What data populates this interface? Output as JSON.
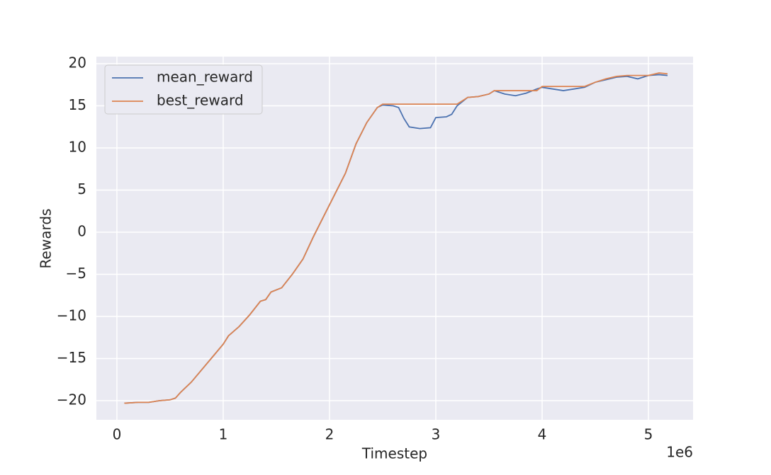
{
  "chart_data": {
    "type": "line",
    "xlabel": "Timestep",
    "ylabel": "Rewards",
    "x_offset_label": "1e6",
    "x": [
      0.07,
      0.2,
      0.3,
      0.4,
      0.5,
      0.55,
      0.6,
      0.7,
      0.8,
      0.9,
      1.0,
      1.05,
      1.15,
      1.25,
      1.35,
      1.4,
      1.45,
      1.55,
      1.65,
      1.75,
      1.85,
      1.95,
      2.05,
      2.15,
      2.25,
      2.35,
      2.45,
      2.5,
      2.6,
      2.65,
      2.7,
      2.75,
      2.85,
      2.95,
      3.0,
      3.1,
      3.15,
      3.2,
      3.3,
      3.4,
      3.5,
      3.55,
      3.65,
      3.75,
      3.85,
      3.95,
      4.0,
      4.1,
      4.2,
      4.3,
      4.4,
      4.5,
      4.6,
      4.7,
      4.8,
      4.9,
      5.0,
      5.1,
      5.18
    ],
    "series": [
      {
        "name": "mean_reward",
        "color": "#4c72b0",
        "values": [
          -20.3,
          -20.2,
          -20.2,
          -20.0,
          -19.9,
          -19.7,
          -19.0,
          -17.8,
          -16.3,
          -14.8,
          -13.3,
          -12.3,
          -11.2,
          -9.8,
          -8.2,
          -8.0,
          -7.1,
          -6.6,
          -5.0,
          -3.2,
          -0.5,
          2.0,
          4.5,
          7.0,
          10.5,
          13.0,
          14.8,
          15.1,
          15.0,
          14.8,
          13.5,
          12.5,
          12.3,
          12.4,
          13.6,
          13.7,
          14.0,
          15.0,
          16.0,
          16.1,
          16.4,
          16.8,
          16.4,
          16.2,
          16.5,
          17.0,
          17.2,
          17.0,
          16.8,
          17.0,
          17.2,
          17.8,
          18.1,
          18.4,
          18.5,
          18.2,
          18.6,
          18.7,
          18.6
        ]
      },
      {
        "name": "best_reward",
        "color": "#dd8452",
        "values": [
          -20.3,
          -20.2,
          -20.2,
          -20.0,
          -19.9,
          -19.7,
          -19.0,
          -17.8,
          -16.3,
          -14.8,
          -13.3,
          -12.3,
          -11.2,
          -9.8,
          -8.2,
          -8.0,
          -7.1,
          -6.6,
          -5.0,
          -3.2,
          -0.5,
          2.0,
          4.5,
          7.0,
          10.5,
          13.0,
          14.8,
          15.2,
          15.2,
          15.2,
          15.2,
          15.2,
          15.2,
          15.2,
          15.2,
          15.2,
          15.2,
          15.2,
          16.0,
          16.1,
          16.4,
          16.8,
          16.8,
          16.8,
          16.8,
          16.8,
          17.3,
          17.3,
          17.3,
          17.3,
          17.3,
          17.8,
          18.2,
          18.5,
          18.6,
          18.6,
          18.6,
          18.9,
          18.8
        ]
      }
    ],
    "xlim": [
      -0.193,
      5.42
    ],
    "xticks": [
      0,
      1,
      2,
      3,
      4,
      5
    ],
    "ylim": [
      -22.27,
      20.84
    ],
    "yticks": [
      {
        "value": -20,
        "label": "−20"
      },
      {
        "value": -15,
        "label": "−15"
      },
      {
        "value": -10,
        "label": "−10"
      },
      {
        "value": -5,
        "label": "−5"
      },
      0,
      5,
      10,
      15,
      20
    ],
    "grid": true,
    "legend": "upper-left"
  }
}
